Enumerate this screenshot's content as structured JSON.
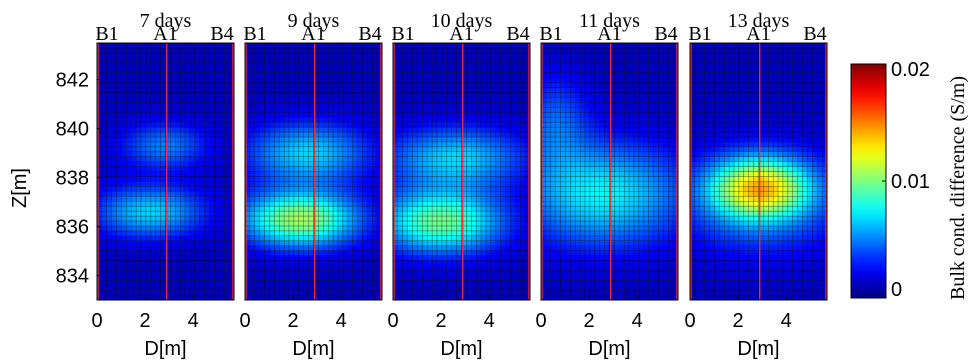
{
  "chart_data": {
    "type": "heatmap",
    "panels": [
      {
        "title": "7 days",
        "top_labels": [
          "B1",
          "A1",
          "B4"
        ],
        "xlabel": "D[m]",
        "blobs": [
          {
            "d": 2.2,
            "z": 836.6,
            "amp": 0.0055,
            "sd": 1.6,
            "sz": 0.75
          },
          {
            "d": 2.8,
            "z": 839.3,
            "amp": 0.0038,
            "sd": 1.3,
            "sz": 0.7
          }
        ]
      },
      {
        "title": "9 days",
        "top_labels": [
          "B1",
          "A1",
          "B4"
        ],
        "xlabel": "D[m]",
        "blobs": [
          {
            "d": 2.3,
            "z": 836.3,
            "amp": 0.0095,
            "sd": 1.7,
            "sz": 0.8
          },
          {
            "d": 2.6,
            "z": 839.0,
            "amp": 0.0055,
            "sd": 1.8,
            "sz": 0.9
          }
        ]
      },
      {
        "title": "10 days",
        "top_labels": [
          "B1",
          "A1",
          "B4"
        ],
        "xlabel": "D[m]",
        "blobs": [
          {
            "d": 2.0,
            "z": 836.2,
            "amp": 0.0085,
            "sd": 1.8,
            "sz": 0.9
          },
          {
            "d": 2.6,
            "z": 838.8,
            "amp": 0.0055,
            "sd": 2.0,
            "sz": 0.9
          }
        ]
      },
      {
        "title": "11 days",
        "top_labels": [
          "B1",
          "A1",
          "B4"
        ],
        "xlabel": "D[m]",
        "blobs": [
          {
            "d": 2.6,
            "z": 837.3,
            "amp": 0.0062,
            "sd": 2.4,
            "sz": 1.5
          },
          {
            "d": 0.6,
            "z": 840.3,
            "amp": 0.003,
            "sd": 1.0,
            "sz": 1.4
          }
        ]
      },
      {
        "title": "13 days",
        "top_labels": [
          "B1",
          "A1",
          "B4"
        ],
        "xlabel": "D[m]",
        "blobs": [
          {
            "d": 2.9,
            "z": 837.6,
            "amp": 0.0095,
            "sd": 1.4,
            "sz": 0.85
          },
          {
            "d": 2.9,
            "z": 837.0,
            "amp": 0.004,
            "sd": 2.4,
            "sz": 1.5
          }
        ]
      }
    ],
    "ylabel": "Z[m]",
    "yticks": [
      834,
      836,
      838,
      840,
      842
    ],
    "ylim": [
      833,
      843.5
    ],
    "xticks": [
      0,
      2,
      4
    ],
    "xlim": [
      0,
      5.7
    ],
    "borehole_positions": [
      0,
      2.9,
      5.7
    ],
    "colorbar": {
      "label": "Bulk cond. difference (S/m)",
      "ticks": [
        "0.02",
        "0.01",
        "0"
      ],
      "tick_values": [
        0.02,
        0.01,
        0
      ],
      "range": [
        0,
        0.02
      ],
      "colormap": "jet"
    },
    "background": 0.0012,
    "line_color": "#ff2a2a"
  }
}
